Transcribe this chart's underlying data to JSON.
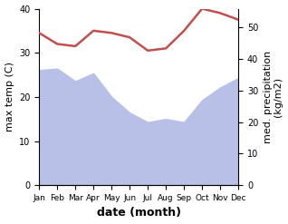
{
  "months": [
    "Jan",
    "Feb",
    "Mar",
    "Apr",
    "May",
    "Jun",
    "Jul",
    "Aug",
    "Sep",
    "Oct",
    "Nov",
    "Dec"
  ],
  "temp": [
    34.5,
    32.0,
    31.5,
    35.0,
    34.5,
    33.5,
    30.5,
    31.0,
    35.0,
    40.0,
    39.0,
    37.5
  ],
  "precip": [
    36.5,
    37.0,
    33.0,
    35.5,
    28.0,
    23.0,
    20.0,
    21.0,
    20.0,
    27.0,
    31.0,
    34.0
  ],
  "temp_color": "#c0504d",
  "precip_fill_color": "#b8c0e8",
  "temp_ylim": [
    0,
    40
  ],
  "precip_ylim": [
    0,
    56
  ],
  "temp_yticks": [
    0,
    10,
    20,
    30,
    40
  ],
  "precip_yticks": [
    0,
    10,
    20,
    30,
    40,
    50
  ],
  "xlabel": "date (month)",
  "ylabel_left": "max temp (C)",
  "ylabel_right": "med. precipitation\n(kg/m2)",
  "bg_color": "#ffffff",
  "xlabel_fontsize": 9,
  "ylabel_fontsize": 8
}
